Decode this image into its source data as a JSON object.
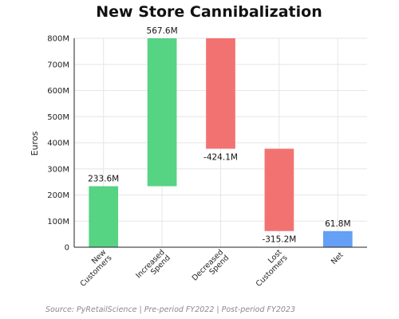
{
  "chart_data": {
    "type": "bar",
    "title": "New Store Cannibalization",
    "ylabel": "Euros",
    "xlabel": "",
    "ylim": [
      0,
      800
    ],
    "yticks": [
      0,
      100,
      200,
      300,
      400,
      500,
      600,
      700,
      800
    ],
    "ytick_labels": [
      "0",
      "100M",
      "200M",
      "300M",
      "400M",
      "500M",
      "600M",
      "700M",
      "800M"
    ],
    "grid": true,
    "categories": [
      [
        "New",
        "Customers"
      ],
      [
        "Increased",
        "Spend"
      ],
      [
        "Decreased",
        "Spend"
      ],
      [
        "Lost",
        "Customers"
      ],
      [
        "Net"
      ]
    ],
    "values": [
      233.6,
      567.6,
      -424.1,
      -315.2,
      61.8
    ],
    "data_labels": [
      "233.6M",
      "567.6M",
      "-424.1M",
      "-315.2M",
      "61.8M"
    ],
    "colors": {
      "increase": "#57d384",
      "decrease": "#f27272",
      "total": "#64a0f5"
    },
    "source": "Source: PyRetailScience | Pre-period FY2022 | Post-period FY2023"
  }
}
